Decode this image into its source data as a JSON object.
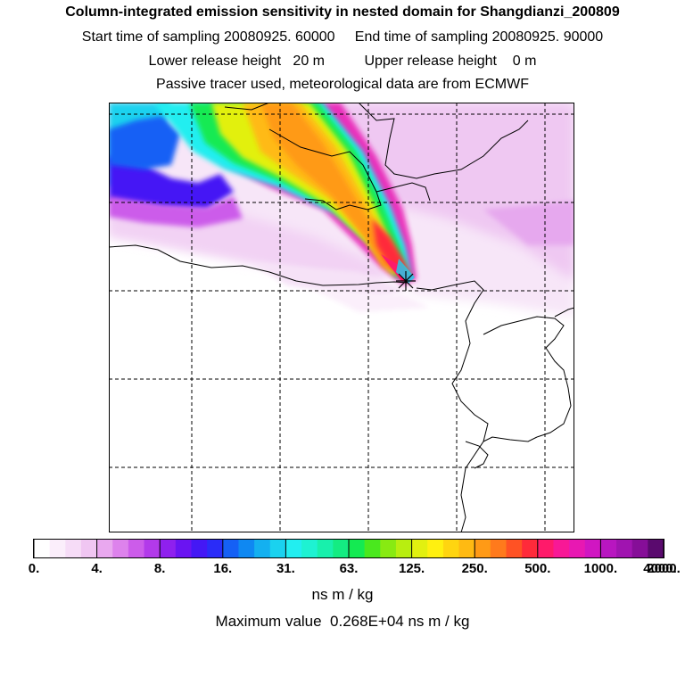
{
  "header": {
    "title": "Column-integrated emission sensitivity in nested domain for Shangdianzi_200809",
    "sampling_line": "Start time of sampling 20080925. 60000     End time of sampling 20080925. 90000",
    "release_line": "Lower release height   20 m          Upper release height    0 m",
    "tracer_line": "Passive tracer used, meteorological data are from ECMWF"
  },
  "colorbar": {
    "tick_labels": [
      "0.",
      "4.",
      "8.",
      "16.",
      "31.",
      "63.",
      "125.",
      "250.",
      "500.",
      "1000.",
      "2000.",
      "4000."
    ],
    "colors": [
      "#ffffff",
      "#fbeefb",
      "#f6dcf7",
      "#f0c6f2",
      "#e9a8ef",
      "#dd82ec",
      "#cc5cea",
      "#b23aea",
      "#8f20ee",
      "#6a14f2",
      "#4418f5",
      "#2a2cf8",
      "#1560f5",
      "#0f88f2",
      "#14b0f0",
      "#1ad2ef",
      "#22eef0",
      "#1ef2d2",
      "#18f0ac",
      "#14ec82",
      "#14ea52",
      "#4ae81e",
      "#88ea12",
      "#b8ee10",
      "#e2f010",
      "#fff010",
      "#ffd510",
      "#ffba12",
      "#ff9a16",
      "#ff7a1c",
      "#ff5224",
      "#ff2a3a",
      "#ff1a6a",
      "#f81896",
      "#e818b2",
      "#d016c2",
      "#b816c0",
      "#a014b0",
      "#860e98",
      "#5a0a6e"
    ]
  },
  "units": "ns m / kg",
  "max_value_line": "Maximum value  0.268E+04 ns m / kg"
}
